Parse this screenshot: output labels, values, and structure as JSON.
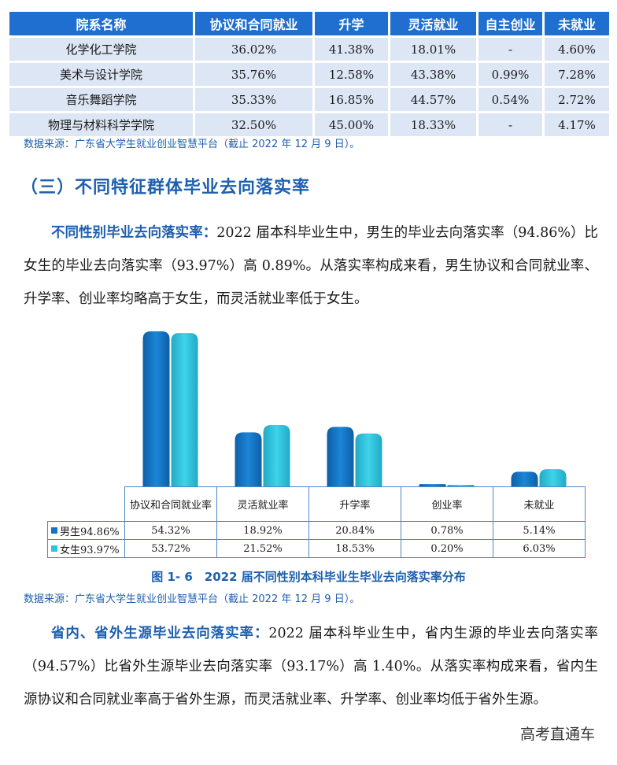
{
  "table": {
    "headers": [
      "院系名称",
      "协议和合同就业",
      "升学",
      "灵活就业",
      "自主创业",
      "未就业"
    ],
    "rows": [
      [
        "化学化工学院",
        "36.02%",
        "41.38%",
        "18.01%",
        "-",
        "4.60%"
      ],
      [
        "美术与设计学院",
        "35.76%",
        "12.58%",
        "43.38%",
        "0.99%",
        "7.28%"
      ],
      [
        "音乐舞蹈学院",
        "35.33%",
        "16.85%",
        "44.57%",
        "0.54%",
        "2.72%"
      ],
      [
        "物理与材料科学学院",
        "32.50%",
        "45.00%",
        "18.33%",
        "-",
        "4.17%"
      ]
    ],
    "source": "数据来源：广东省大学生就业创业智慧平台（截止 2022 年 12 月 9 日）。"
  },
  "section_title": "（三）不同特征群体毕业去向落实率",
  "para1": {
    "lead": "不同性别毕业去向落实率：",
    "body": "2022 届本科毕业生中，男生的毕业去向落实率（94.86%）比女生的毕业去向落实率（93.97%）高 0.89%。从落实率构成来看，男生协议和合同就业率、升学率、创业率均略高于女生，而灵活就业率低于女生。"
  },
  "chart_data": {
    "type": "bar",
    "categories": [
      "协议和合同就业率",
      "灵活就业率",
      "升学率",
      "创业率",
      "未就业"
    ],
    "series": [
      {
        "name": "男生94.86%",
        "values": [
          54.32,
          18.92,
          20.84,
          0.78,
          5.14
        ],
        "labels": [
          "54.32%",
          "18.92%",
          "20.84%",
          "0.78%",
          "5.14%"
        ],
        "color": "#1474c4"
      },
      {
        "name": "女生93.97%",
        "values": [
          53.72,
          21.52,
          18.53,
          0.2,
          6.03
        ],
        "labels": [
          "53.72%",
          "21.52%",
          "18.53%",
          "0.20%",
          "6.03%"
        ],
        "color": "#2ec3dc"
      }
    ],
    "ylim": [
      0,
      54.32
    ]
  },
  "caption": "图 1- 6　2022 届不同性别本科毕业生毕业去向落实率分布",
  "source2": "数据来源：广东省大学生就业创业智慧平台（截止 2022 年 12 月 9 日）。",
  "para2": {
    "lead": "省内、省外生源毕业去向落实率：",
    "body": "2022 届本科毕业生中，省内生源的毕业去向落实率（94.57%）比省外生源毕业去向落实率（93.17%）高 1.40%。从落实率构成来看，省内生源协议和合同就业率高于省外生源，而灵活就业率、升学率、创业率均低于省外生源。"
  },
  "watermark": "高考直通车"
}
